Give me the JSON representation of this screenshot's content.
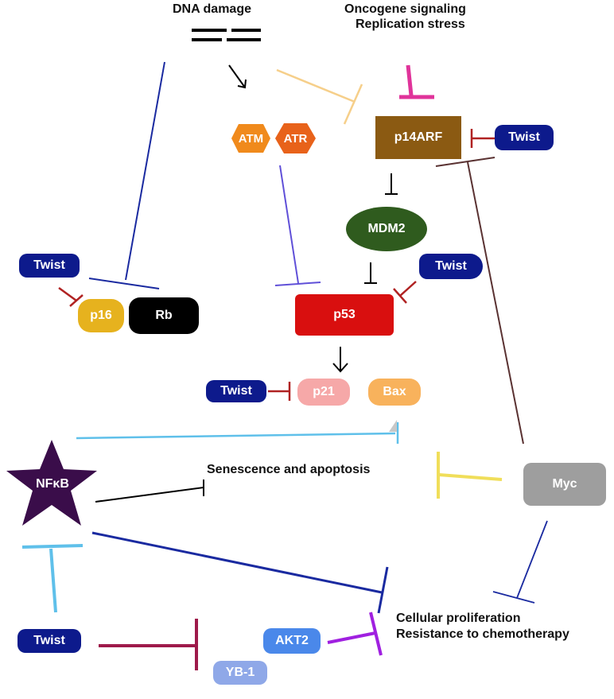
{
  "labels": {
    "dna_damage": "DNA damage",
    "oncogene_line1": "Oncogene signaling",
    "oncogene_line2": "Replication stress",
    "senescence": "Senescence and apoptosis",
    "cellular_line1": "Cellular proliferation",
    "cellular_line2": "Resistance to chemotherapy"
  },
  "nodes": {
    "atm": "ATM",
    "atr": "ATR",
    "p14arf": "p14ARF",
    "twist_p14": "Twist",
    "mdm2": "MDM2",
    "twist_p16": "Twist",
    "p16": "p16",
    "rb": "Rb",
    "twist_p53": "Twist",
    "p53": "p53",
    "twist_p21": "Twist",
    "p21": "p21",
    "bax": "Bax",
    "nfkb": "NFκB",
    "myc": "Myc",
    "twist_bottom": "Twist",
    "akt2": "AKT2",
    "yb1": "YB-1"
  },
  "colors": {
    "twist": "#0d1a8c",
    "atm": "#f08a1c",
    "atr": "#e8621a",
    "p14arf": "#8b5a12",
    "mdm2": "#2f5b1e",
    "p16": "#e6b21e",
    "rb": "#000000",
    "p53": "#d90f0f",
    "p21": "#f6a8a8",
    "bax": "#f8b25c",
    "nfkb": "#3a0d4a",
    "myc": "#9e9e9e",
    "akt2": "#4a88ea",
    "yb1": "#8fa8e8"
  }
}
